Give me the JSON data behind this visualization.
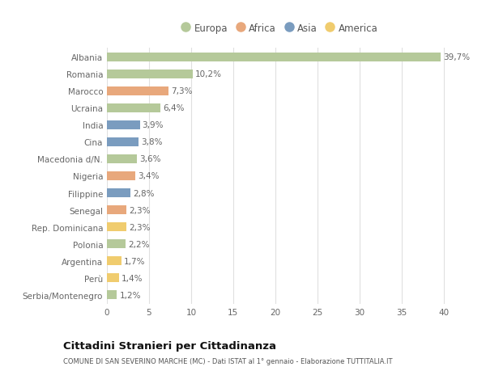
{
  "countries": [
    "Serbia/Montenegro",
    "Perù",
    "Argentina",
    "Polonia",
    "Rep. Dominicana",
    "Senegal",
    "Filippine",
    "Nigeria",
    "Macedonia d/N.",
    "Cina",
    "India",
    "Ucraina",
    "Marocco",
    "Romania",
    "Albania"
  ],
  "values": [
    1.2,
    1.4,
    1.7,
    2.2,
    2.3,
    2.3,
    2.8,
    3.4,
    3.6,
    3.8,
    3.9,
    6.4,
    7.3,
    10.2,
    39.7
  ],
  "labels": [
    "1,2%",
    "1,4%",
    "1,7%",
    "2,2%",
    "2,3%",
    "2,3%",
    "2,8%",
    "3,4%",
    "3,6%",
    "3,8%",
    "3,9%",
    "6,4%",
    "7,3%",
    "10,2%",
    "39,7%"
  ],
  "continent": [
    "Europa",
    "America",
    "America",
    "Europa",
    "America",
    "Africa",
    "Asia",
    "Africa",
    "Europa",
    "Asia",
    "Asia",
    "Europa",
    "Africa",
    "Europa",
    "Europa"
  ],
  "continent_colors": {
    "Europa": "#b5c99a",
    "Africa": "#e8a87c",
    "Asia": "#7a9cbf",
    "America": "#f0cc6e"
  },
  "legend_order": [
    "Europa",
    "Africa",
    "Asia",
    "America"
  ],
  "title": "Cittadini Stranieri per Cittadinanza",
  "subtitle": "COMUNE DI SAN SEVERINO MARCHE (MC) - Dati ISTAT al 1° gennaio - Elaborazione TUTTITALIA.IT",
  "xlim": [
    0,
    41
  ],
  "xticks": [
    0,
    5,
    10,
    15,
    20,
    25,
    30,
    35,
    40
  ],
  "background_color": "#ffffff",
  "grid_color": "#e0e0e0",
  "bar_height": 0.55,
  "label_fontsize": 7.5,
  "tick_fontsize": 7.5,
  "label_color": "#666666",
  "tick_color": "#666666"
}
